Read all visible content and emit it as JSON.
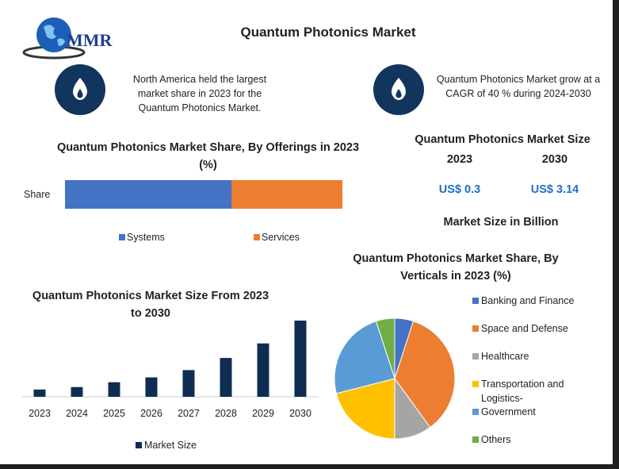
{
  "header": {
    "logo_text": "MMR",
    "title": "Quantum Photonics Market"
  },
  "callouts": [
    {
      "text": "North America held the largest market share in 2023 for the Quantum Photonics Market."
    },
    {
      "text": "Quantum Photonics Market grow at a CAGR of 40 % during 2024-2030"
    }
  ],
  "market_size": {
    "title": "Quantum Photonics Market Size",
    "years": [
      "2023",
      "2030"
    ],
    "values": [
      "US$ 0.3",
      "US$ 3.14"
    ],
    "note": "Market Size in Billion"
  },
  "chart_data": [
    {
      "type": "stacked-bar",
      "title": "Quantum Photonics Market Share, By Offerings in 2023 (%)",
      "categories": [
        "Share"
      ],
      "series": [
        {
          "name": "Systems",
          "color": "#4472c4",
          "values": [
            60
          ]
        },
        {
          "name": "Services",
          "color": "#ed7d31",
          "values": [
            40
          ]
        }
      ]
    },
    {
      "type": "bar",
      "title": "Quantum Photonics Market Size From 2023 to 2030",
      "categories": [
        "2023",
        "2024",
        "2025",
        "2026",
        "2027",
        "2028",
        "2029",
        "2030"
      ],
      "series": [
        {
          "name": "Market Size",
          "color": "#0f2d52",
          "values": [
            0.3,
            0.4,
            0.6,
            0.8,
            1.1,
            1.6,
            2.2,
            3.14
          ]
        }
      ]
    },
    {
      "type": "pie",
      "title": "Quantum Photonics Market Share, By Verticals in 2023 (%)",
      "categories": [
        "Banking and Finance",
        "Space and Defense",
        "Healthcare",
        "Transportation and Logistics-",
        "Government",
        "Others"
      ],
      "values": [
        5,
        35,
        10,
        21,
        24,
        5
      ],
      "colors": [
        "#4472c4",
        "#ed7d31",
        "#a5a5a5",
        "#ffc000",
        "#5b9bd5",
        "#70ad47"
      ]
    }
  ]
}
